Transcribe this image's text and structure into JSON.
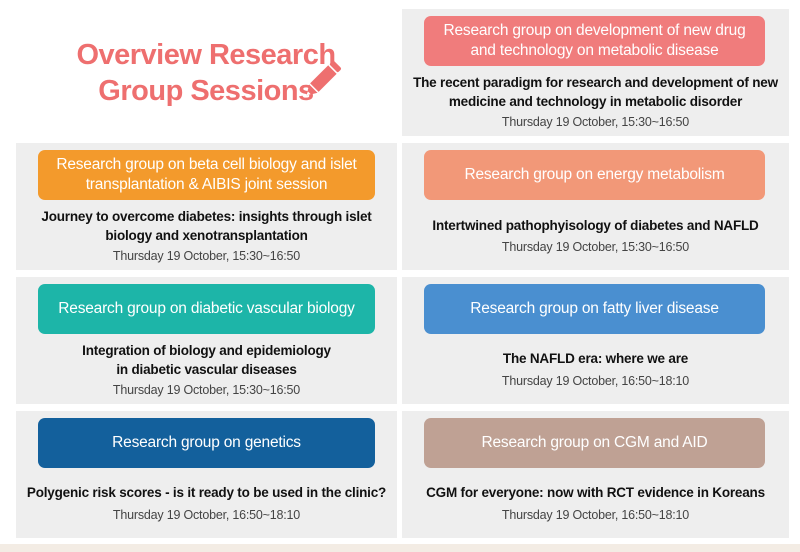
{
  "hero": {
    "title_line1": "Overview Research",
    "title_line2": "Group Sessions",
    "icon": "pencil-icon"
  },
  "colors": {
    "hero_title": "#ee6f6f",
    "card_bg": "#eeeeee"
  },
  "sessions": [
    {
      "group": "Research group on development of new drug and technology on metabolic disease",
      "topic": "The recent paradigm for research and development of new medicine and technology in metabolic disorder",
      "time": "Thursday 19 October, 15:30~16:50",
      "color": "#f07c7c"
    },
    {
      "group": "Research group on beta cell biology and islet transplantation & AIBIS joint session",
      "topic": "Journey to overcome diabetes: insights through islet biology and xenotransplantation",
      "time": "Thursday 19 October, 15:30~16:50",
      "color": "#f39a2c"
    },
    {
      "group": "Research group on energy metabolism",
      "topic": "Intertwined pathophyisology of diabetes and NAFLD",
      "time": "Thursday 19 October, 15:30~16:50",
      "color": "#f29878"
    },
    {
      "group": "Research group on diabetic vascular biology",
      "topic": "Integration of biology and epidemiology in diabetic vascular diseases",
      "time": "Thursday 19 October, 15:30~16:50",
      "color": "#1db5a8"
    },
    {
      "group": "Research group on fatty liver disease",
      "topic": "The NAFLD era: where we are",
      "time": "Thursday 19 October, 16:50~18:10",
      "color": "#4a8fd0"
    },
    {
      "group": "Research group on genetics",
      "topic": "Polygenic risk scores - is it ready to be used in the clinic?",
      "time": "Thursday 19 October, 16:50~18:10",
      "color": "#13609c"
    },
    {
      "group": "Research group on CGM and AID",
      "topic": "CGM for everyone: now with RCT evidence in Koreans",
      "time": "Thursday 19 October, 16:50~18:10",
      "color": "#bfa194"
    }
  ]
}
